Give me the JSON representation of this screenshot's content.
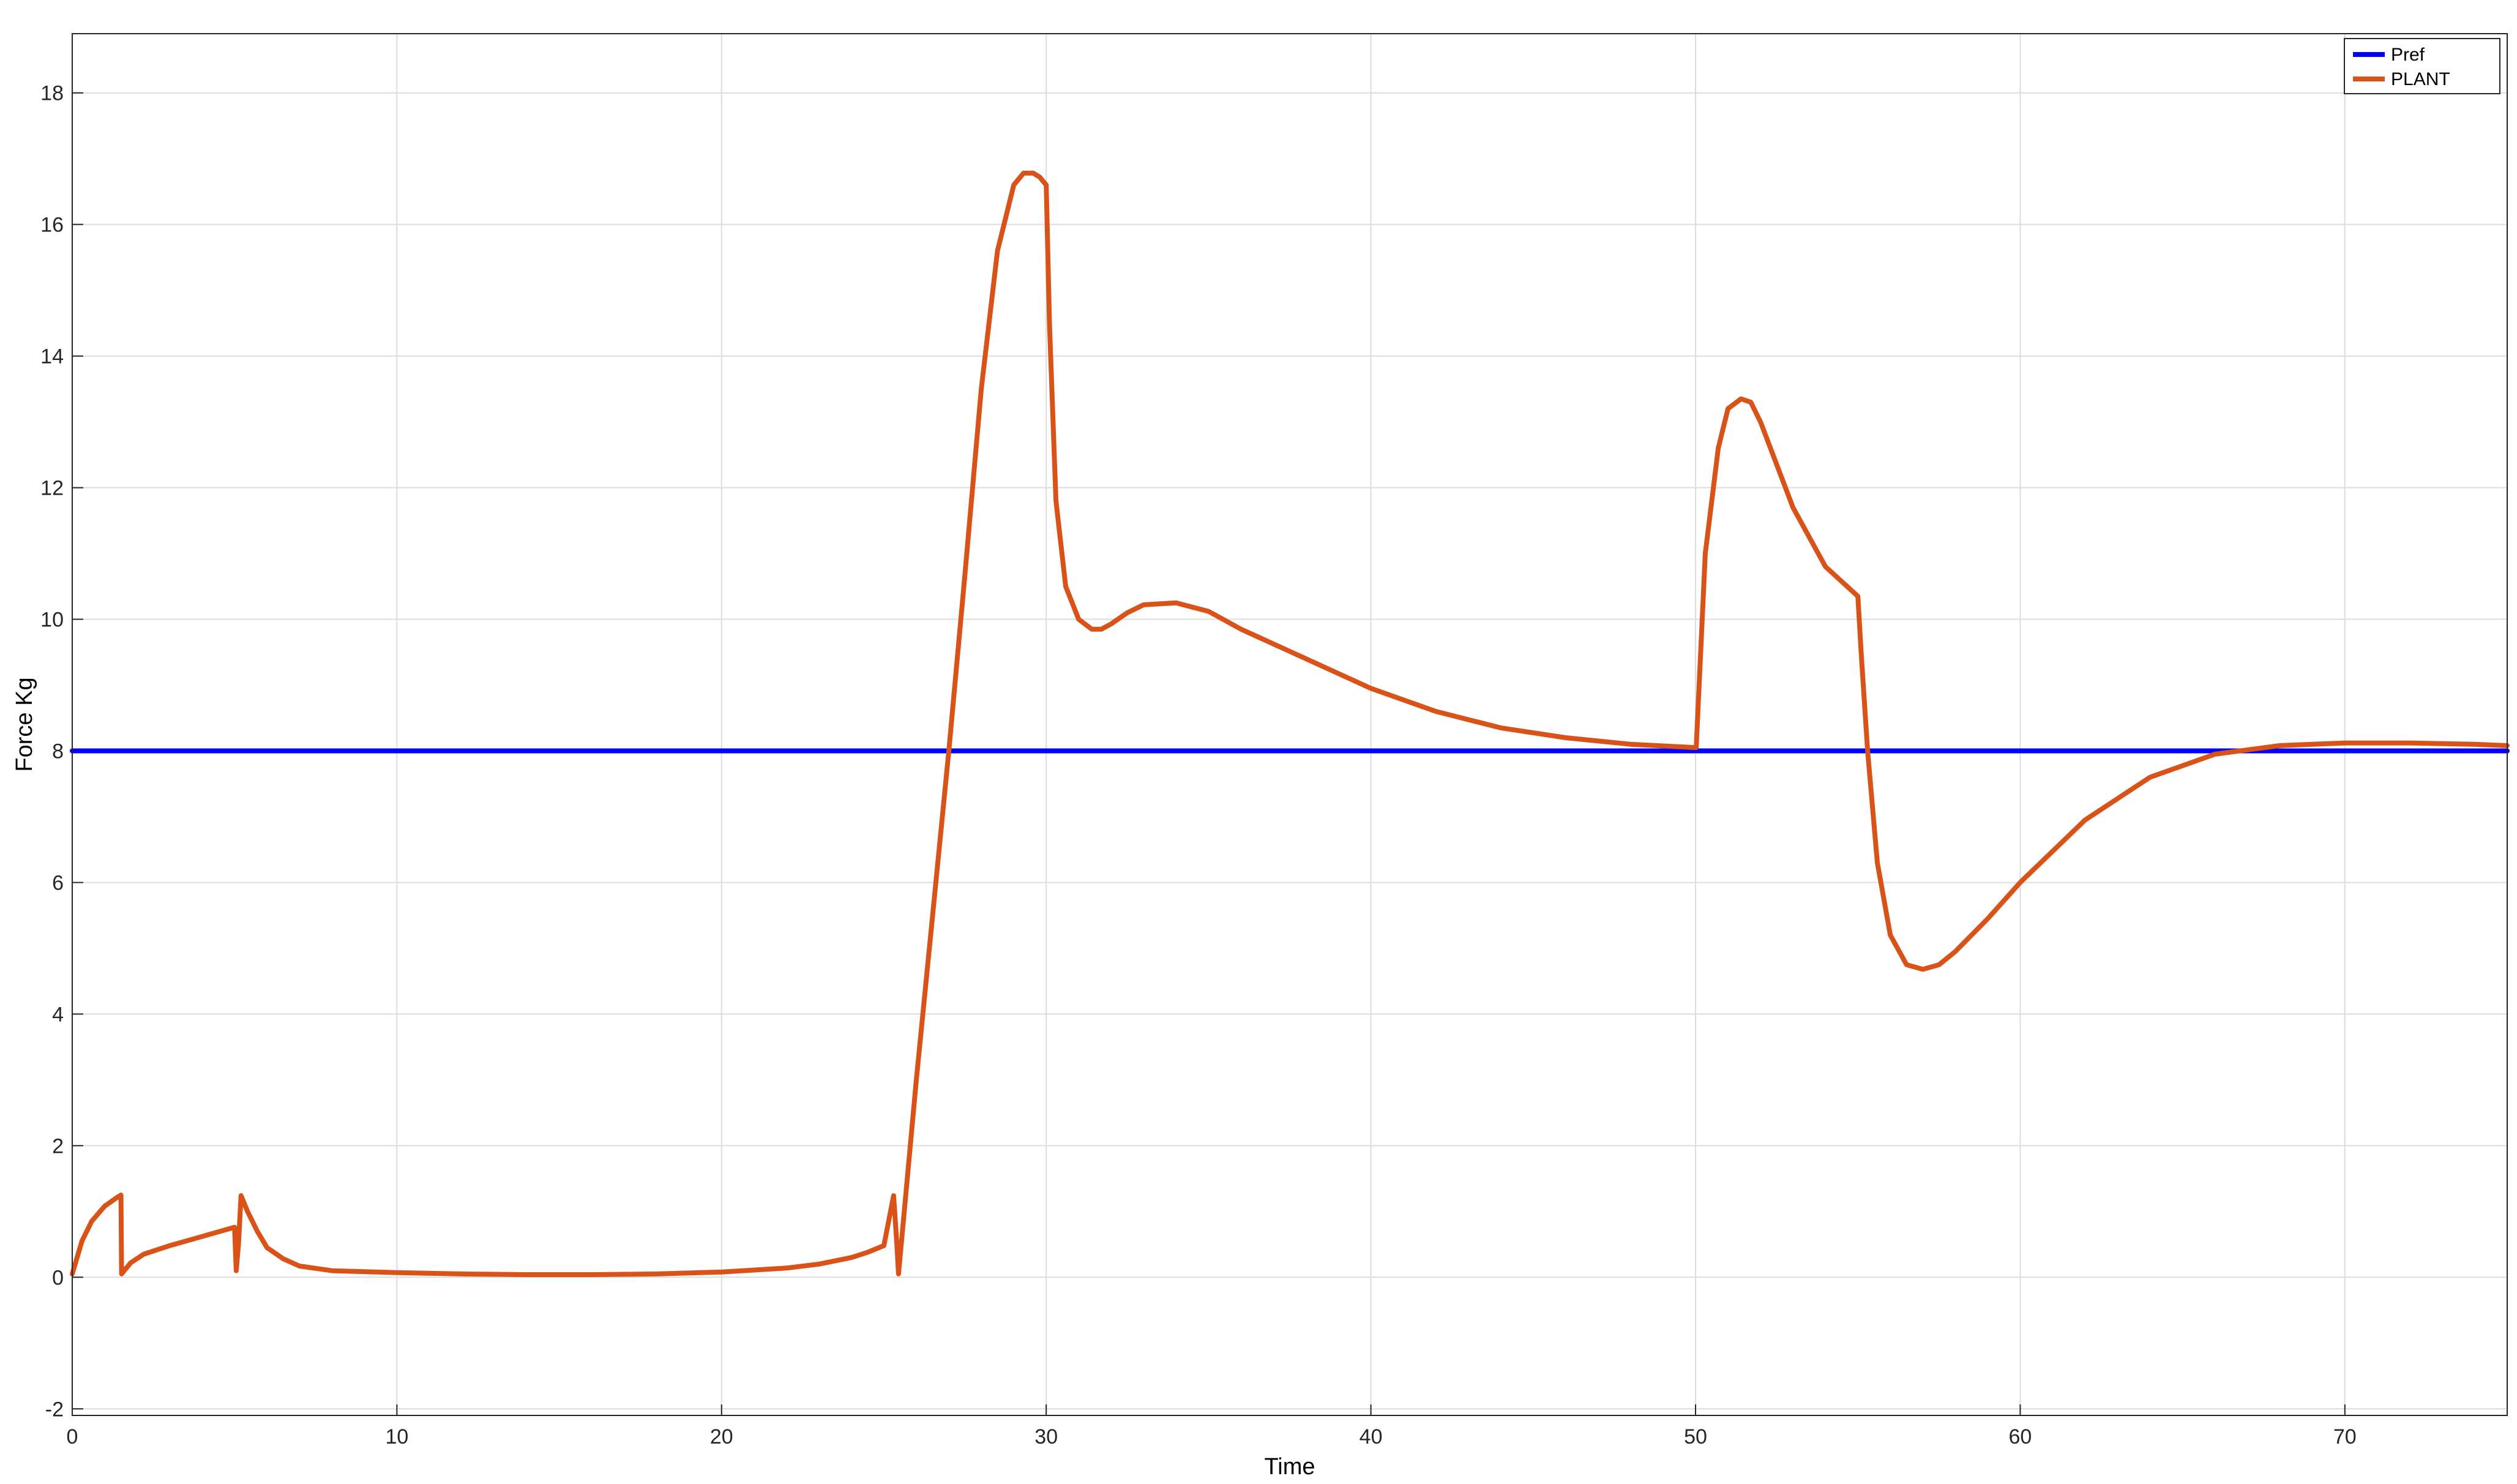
{
  "chart_data": {
    "type": "line",
    "title": "",
    "xlabel": "Time",
    "ylabel": "Force Kg",
    "xlim": [
      0,
      75
    ],
    "ylim": [
      -2.1,
      18.9
    ],
    "xticks": [
      0,
      10,
      20,
      30,
      40,
      50,
      60,
      70
    ],
    "yticks": [
      -2,
      0,
      2,
      4,
      6,
      8,
      10,
      12,
      14,
      16,
      18
    ],
    "grid": true,
    "legend_position": "top-right",
    "series": [
      {
        "name": "Pref",
        "color": "#0000ff",
        "x": [
          0,
          75
        ],
        "y": [
          8,
          8
        ]
      },
      {
        "name": "PLANT",
        "color": "#d95319",
        "x": [
          0,
          0.3,
          0.6,
          1.0,
          1.4,
          1.5,
          1.52,
          1.8,
          2.2,
          3.0,
          4.0,
          5.0,
          5.05,
          5.12,
          5.2,
          5.4,
          5.7,
          6.0,
          6.5,
          7.0,
          8.0,
          10,
          12,
          14,
          16,
          18,
          20,
          22,
          23,
          24,
          24.5,
          25.0,
          25.3,
          25.4,
          25.45,
          26.0,
          26.5,
          27.0,
          27.5,
          28.0,
          28.5,
          29.0,
          29.3,
          29.6,
          29.8,
          30.0,
          30.1,
          30.3,
          30.6,
          31.0,
          31.4,
          31.7,
          32.0,
          32.5,
          33.0,
          34.0,
          35.0,
          36.0,
          38.0,
          40.0,
          42.0,
          44.0,
          46.0,
          48.0,
          50.0,
          50.02,
          50.3,
          50.7,
          51.0,
          51.4,
          51.7,
          52.0,
          53.0,
          54.0,
          55.0,
          55.1,
          55.3,
          55.6,
          56.0,
          56.5,
          57.0,
          57.5,
          58.0,
          59.0,
          60.0,
          62.0,
          64.0,
          66.0,
          68.0,
          70.0,
          72.0,
          74.0,
          75.0
        ],
        "y": [
          0.05,
          0.55,
          0.85,
          1.08,
          1.22,
          1.25,
          0.05,
          0.22,
          0.35,
          0.48,
          0.62,
          0.76,
          0.1,
          0.5,
          1.24,
          1.0,
          0.7,
          0.45,
          0.28,
          0.17,
          0.1,
          0.07,
          0.05,
          0.04,
          0.04,
          0.05,
          0.08,
          0.14,
          0.2,
          0.3,
          0.38,
          0.48,
          1.24,
          0.5,
          0.05,
          3.0,
          5.5,
          8.0,
          10.7,
          13.5,
          15.6,
          16.6,
          16.78,
          16.78,
          16.72,
          16.6,
          14.5,
          11.8,
          10.5,
          10.0,
          9.85,
          9.85,
          9.93,
          10.1,
          10.22,
          10.25,
          10.12,
          9.85,
          9.4,
          8.95,
          8.6,
          8.35,
          8.2,
          8.1,
          8.05,
          8.05,
          11.0,
          12.6,
          13.2,
          13.35,
          13.3,
          13.0,
          11.7,
          10.8,
          10.35,
          9.5,
          8.0,
          6.3,
          5.2,
          4.75,
          4.68,
          4.75,
          4.95,
          5.45,
          6.0,
          6.95,
          7.6,
          7.95,
          8.08,
          8.12,
          8.12,
          8.1,
          8.08
        ]
      }
    ]
  }
}
